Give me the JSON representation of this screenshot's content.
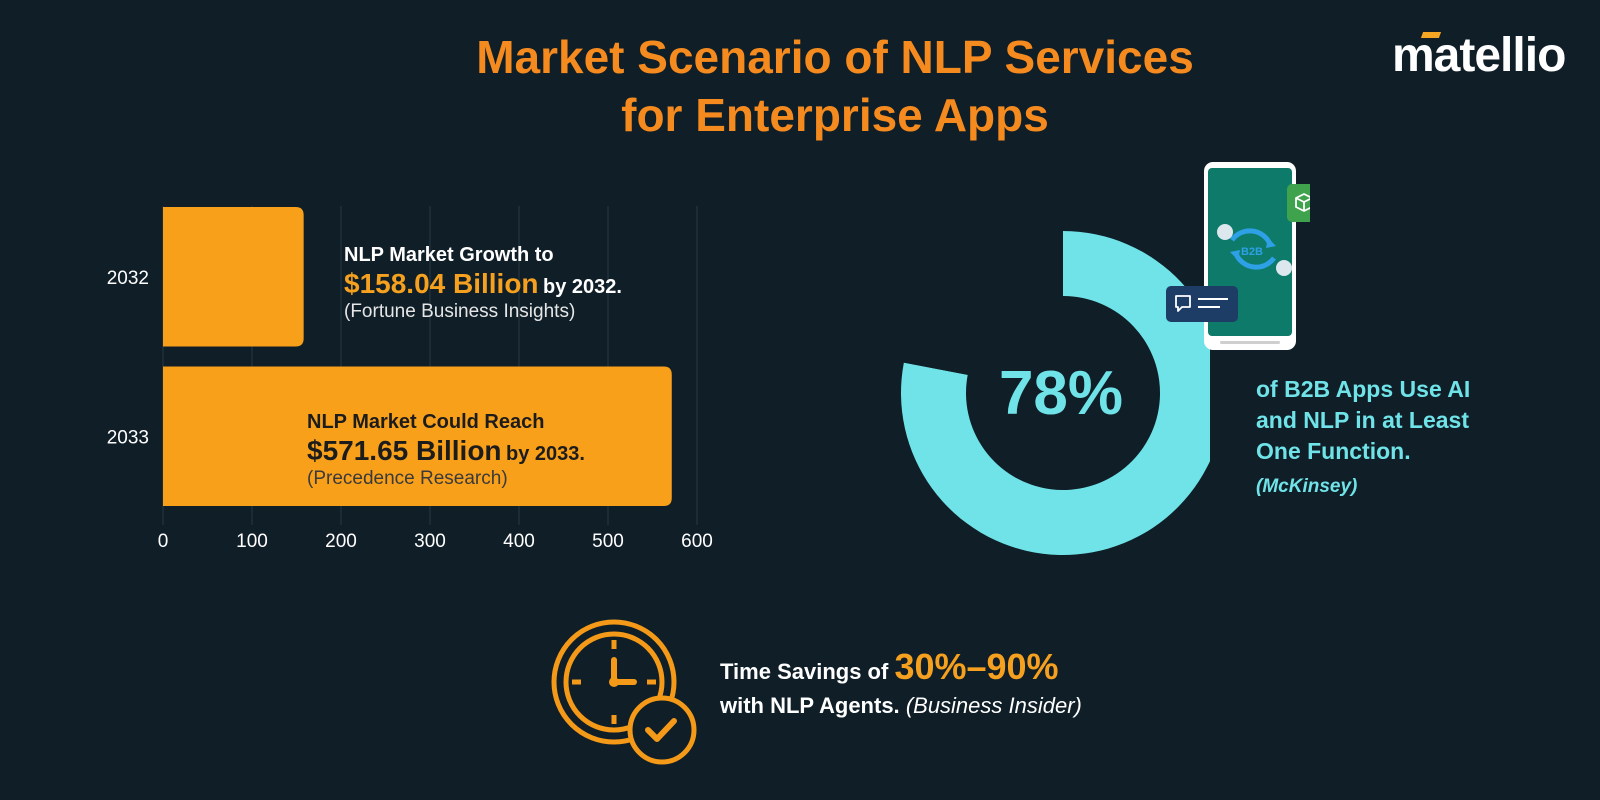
{
  "header": {
    "title_line1": "Market Scenario of NLP Services",
    "title_line2": "for Enterprise Apps",
    "brand": "matellio"
  },
  "chart_data": [
    {
      "type": "bar",
      "orientation": "horizontal",
      "categories": [
        "2032",
        "2033"
      ],
      "values": [
        158.04,
        571.65
      ],
      "xlim": [
        0,
        600
      ],
      "xticks": [
        "0",
        "100",
        "200",
        "300",
        "400",
        "500",
        "600"
      ],
      "grid": true,
      "color": "#f9a01b",
      "annotations": [
        {
          "line1": "NLP Market Growth to",
          "value": "$158.04 Billion",
          "suffix": "by 2032.",
          "source": "(Fortune Business Insights)"
        },
        {
          "line1": "NLP Market Could Reach",
          "value": "$571.65 Billion",
          "suffix": "by 2033.",
          "source": "(Precedence Research)"
        }
      ]
    },
    {
      "type": "pie",
      "style": "donut",
      "values": [
        78,
        22
      ],
      "color": "#6fe3e8",
      "center_label": "78%",
      "caption_lines": [
        "of B2B Apps Use AI",
        "and NLP in at Least",
        "One Function."
      ],
      "source": "(McKinsey)"
    }
  ],
  "phone": {
    "badge": "B2B"
  },
  "time_savings": {
    "prefix": "Time Savings of",
    "value": "30%–90%",
    "line2": "with NLP Agents.",
    "source": "(Business Insider)"
  },
  "colors": {
    "background": "#0f1e27",
    "orange": "#f58a1f",
    "bar": "#f9a01b",
    "teal": "#6fe3e8"
  }
}
